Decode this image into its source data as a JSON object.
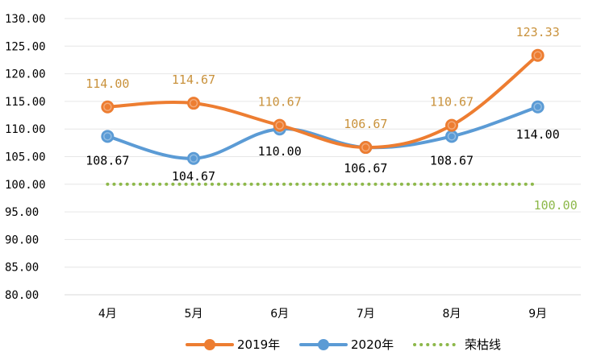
{
  "chart_data": {
    "type": "line",
    "categories": [
      "4月",
      "5月",
      "6月",
      "7月",
      "8月",
      "9月"
    ],
    "ylim": [
      80,
      130
    ],
    "yticks": [
      "80.00",
      "85.00",
      "90.00",
      "95.00",
      "100.00",
      "105.00",
      "110.00",
      "115.00",
      "120.00",
      "125.00",
      "130.00"
    ],
    "grid": true,
    "legend_position": "bottom",
    "series": [
      {
        "name": "2019年",
        "values": [
          114.0,
          114.67,
          110.67,
          106.67,
          110.67,
          123.33
        ],
        "labels": [
          "114.00",
          "114.67",
          "110.67",
          "106.67",
          "110.67",
          "123.33"
        ],
        "color": "#ED7D31",
        "label_color": "#C9923C",
        "style": "smooth-marker"
      },
      {
        "name": "2020年",
        "values": [
          108.67,
          104.67,
          110.0,
          106.67,
          108.67,
          114.0
        ],
        "labels": [
          "108.67",
          "104.67",
          "110.00",
          "106.67",
          "108.67",
          "114.00"
        ],
        "color": "#5B9BD5",
        "label_color": "#000000",
        "style": "smooth-marker"
      },
      {
        "name": "荣枯线",
        "values": [
          100,
          100,
          100,
          100,
          100,
          100
        ],
        "labels": [
          "",
          "",
          "",
          "",
          "",
          "100.00"
        ],
        "color": "#8DB84A",
        "label_color": "#8DB84A",
        "style": "dotted"
      }
    ]
  }
}
